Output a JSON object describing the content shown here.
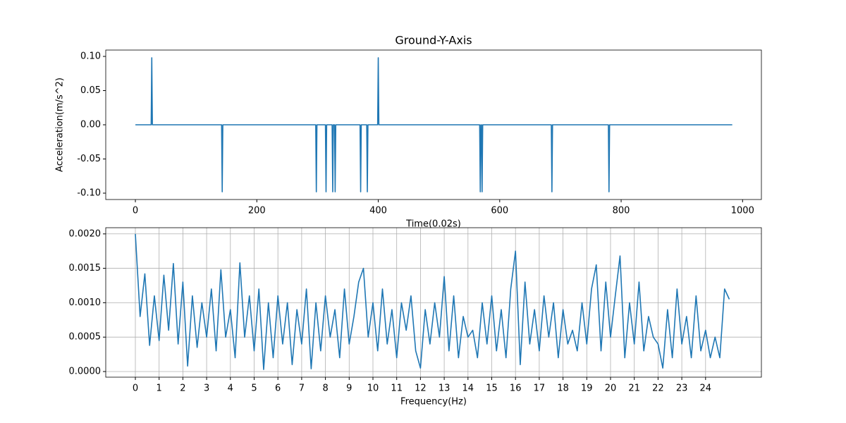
{
  "chart_data": [
    {
      "type": "line",
      "title": "Ground-Y-Axis",
      "xlabel": "Time(0.02s)",
      "ylabel": "Acceleration(m/s^2)",
      "x": [
        0,
        26,
        27,
        28,
        142,
        143,
        144,
        297,
        298,
        299,
        313,
        314,
        315,
        324,
        325,
        326,
        328,
        329,
        330,
        370,
        371,
        372,
        381,
        382,
        383,
        399,
        400,
        401,
        567,
        568,
        569,
        570,
        571,
        572,
        685,
        686,
        687,
        779,
        780,
        781,
        983
      ],
      "series": [
        {
          "color": "#1f77b4",
          "values": [
            0,
            0,
            0.098,
            0,
            0,
            -0.098,
            0,
            0,
            -0.098,
            0,
            0,
            -0.098,
            0,
            0,
            -0.098,
            0,
            0,
            -0.098,
            0,
            0,
            -0.098,
            0,
            0,
            -0.098,
            0,
            0,
            0.098,
            0,
            0,
            -0.098,
            0,
            0,
            -0.098,
            0,
            0,
            -0.098,
            0,
            0,
            -0.098,
            0,
            0
          ]
        }
      ],
      "xlim": [
        -48.8,
        1031
      ],
      "xticks": [
        0,
        200,
        400,
        600,
        800,
        1000
      ],
      "ylim": [
        -0.1093,
        0.1093
      ],
      "yticks": [
        {
          "value": -0.1,
          "label": "-0.10"
        },
        {
          "value": -0.05,
          "label": "-0.05"
        },
        {
          "value": 0,
          "label": "0.00"
        },
        {
          "value": 0.05,
          "label": "0.05"
        },
        {
          "value": 0.1,
          "label": "0.10"
        }
      ],
      "grid": false
    },
    {
      "type": "line",
      "xlabel": "Frequency(Hz)",
      "x": [
        0,
        0.2,
        0.4,
        0.6,
        0.8,
        1,
        1.2,
        1.4,
        1.6,
        1.8,
        2,
        2.2,
        2.4,
        2.6,
        2.8,
        3,
        3.2,
        3.4,
        3.6,
        3.8,
        4,
        4.2,
        4.4,
        4.6,
        4.8,
        5,
        5.2,
        5.4,
        5.6,
        5.8,
        6,
        6.2,
        6.4,
        6.6,
        6.8,
        7,
        7.2,
        7.4,
        7.6,
        7.8,
        8,
        8.2,
        8.4,
        8.6,
        8.8,
        9,
        9.2,
        9.4,
        9.6,
        9.8,
        10,
        10.2,
        10.4,
        10.6,
        10.8,
        11,
        11.2,
        11.4,
        11.6,
        11.8,
        12,
        12.2,
        12.4,
        12.6,
        12.8,
        13,
        13.2,
        13.4,
        13.6,
        13.8,
        14,
        14.2,
        14.4,
        14.6,
        14.8,
        15,
        15.2,
        15.4,
        15.6,
        15.8,
        16,
        16.2,
        16.4,
        16.6,
        16.8,
        17,
        17.2,
        17.4,
        17.6,
        17.8,
        18,
        18.2,
        18.4,
        18.6,
        18.8,
        19,
        19.2,
        19.4,
        19.6,
        19.8,
        20,
        20.2,
        20.4,
        20.6,
        20.8,
        21,
        21.2,
        21.4,
        21.6,
        21.8,
        22,
        22.2,
        22.4,
        22.6,
        22.8,
        23,
        23.2,
        23.4,
        23.6,
        23.8,
        24,
        24.2,
        24.4,
        24.6,
        24.8,
        25
      ],
      "series": [
        {
          "color": "#1f77b4",
          "values": [
            0.002,
            0.0008,
            0.00142,
            0.00038,
            0.0011,
            0.00045,
            0.0014,
            0.0006,
            0.00157,
            0.0004,
            0.0013,
            8e-05,
            0.0011,
            0.00035,
            0.001,
            0.0005,
            0.0012,
            0.0003,
            0.00148,
            0.0005,
            0.0009,
            0.0002,
            0.00158,
            0.0005,
            0.0011,
            0.0003,
            0.0012,
            3e-05,
            0.001,
            0.0002,
            0.0011,
            0.0004,
            0.001,
            0.0001,
            0.0009,
            0.0004,
            0.0012,
            4e-05,
            0.001,
            0.0003,
            0.0011,
            0.0005,
            0.0009,
            0.0002,
            0.0012,
            0.0004,
            0.0008,
            0.0013,
            0.0015,
            0.0005,
            0.001,
            0.0003,
            0.0012,
            0.0004,
            0.0009,
            0.0002,
            0.001,
            0.0006,
            0.0011,
            0.0003,
            5e-05,
            0.0009,
            0.0004,
            0.001,
            0.0005,
            0.00138,
            0.0003,
            0.0011,
            0.0002,
            0.0008,
            0.0005,
            0.0006,
            0.0002,
            0.001,
            0.0004,
            0.0011,
            0.0003,
            0.0009,
            0.0002,
            0.0012,
            0.00175,
            0.0001,
            0.0013,
            0.0004,
            0.0009,
            0.0003,
            0.0011,
            0.0005,
            0.001,
            0.0002,
            0.0009,
            0.0004,
            0.0006,
            0.0003,
            0.001,
            0.0004,
            0.0012,
            0.00155,
            0.0003,
            0.0013,
            0.0005,
            0.0011,
            0.00168,
            0.0002,
            0.001,
            0.0004,
            0.0013,
            0.0003,
            0.0008,
            0.0005,
            0.0004,
            5e-05,
            0.0009,
            0.0002,
            0.0012,
            0.0004,
            0.0008,
            0.0002,
            0.0011,
            0.0003,
            0.0006,
            0.0002,
            0.0005,
            0.0002,
            0.0012,
            0.00105
          ]
        }
      ],
      "xlim": [
        -1.246,
        26.35
      ],
      "xticks": [
        0,
        1,
        2,
        3,
        4,
        5,
        6,
        7,
        8,
        9,
        10,
        11,
        12,
        13,
        14,
        15,
        16,
        17,
        18,
        19,
        20,
        21,
        22,
        23,
        24
      ],
      "ylim": [
        -8.2e-05,
        0.00209
      ],
      "yticks": [
        {
          "value": 0,
          "label": "0.0000"
        },
        {
          "value": 0.0005,
          "label": "0.0005"
        },
        {
          "value": 0.001,
          "label": "0.0010"
        },
        {
          "value": 0.0015,
          "label": "0.0015"
        },
        {
          "value": 0.002,
          "label": "0.0020"
        }
      ],
      "grid": true
    }
  ]
}
